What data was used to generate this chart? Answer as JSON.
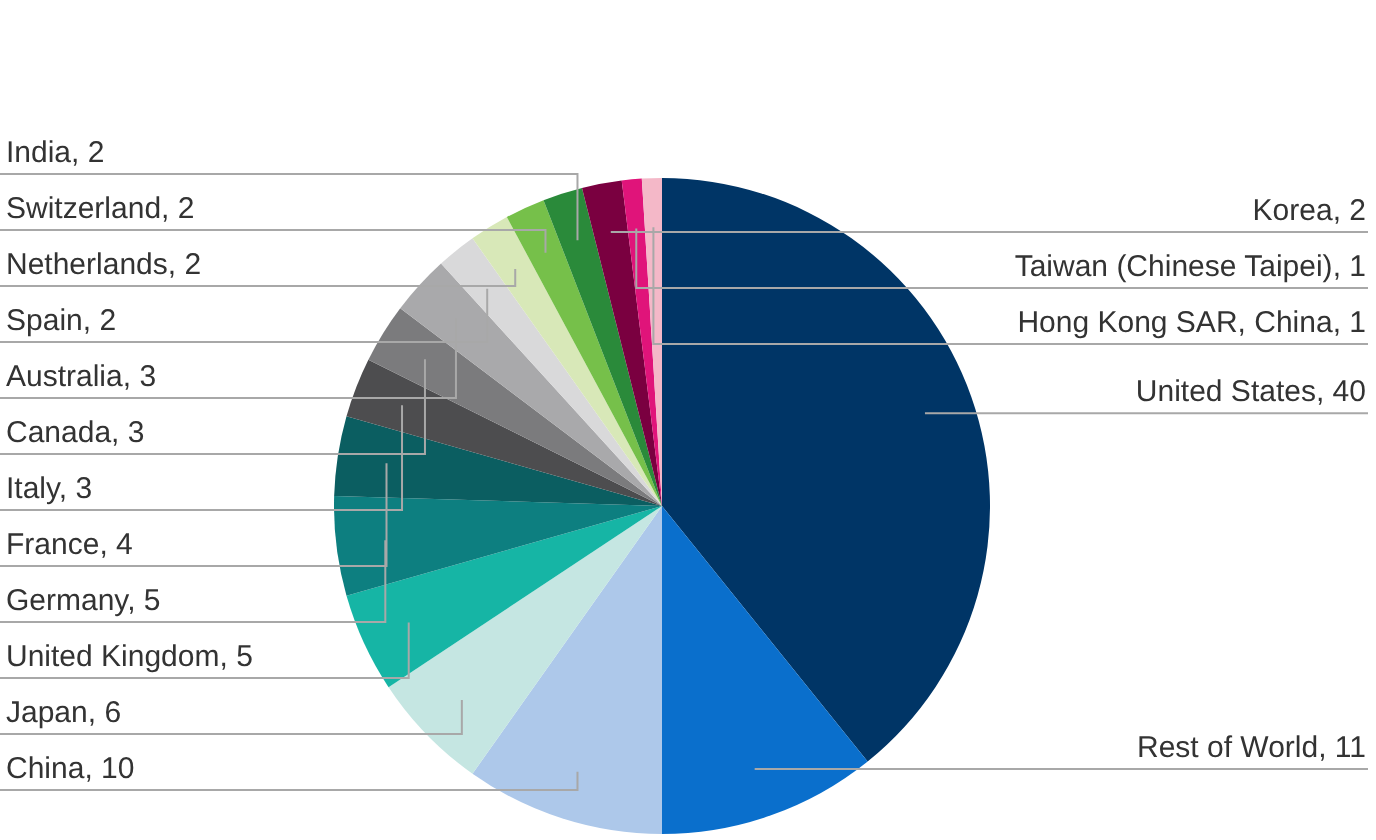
{
  "chart_data": {
    "type": "pie",
    "categories": [
      "United States",
      "Rest of World",
      "China",
      "Japan",
      "United Kingdom",
      "Germany",
      "France",
      "Italy",
      "Canada",
      "Australia",
      "Spain",
      "Netherlands",
      "Switzerland",
      "India",
      "Korea",
      "Taiwan (Chinese Taipei)",
      "Hong Kong SAR, China"
    ],
    "values": [
      40,
      11,
      10,
      6,
      5,
      5,
      4,
      3,
      3,
      3,
      2,
      2,
      2,
      2,
      2,
      1,
      1
    ],
    "colors": [
      "#003566",
      "#0a6fcc",
      "#adc8ea",
      "#c5e6e2",
      "#16b5a5",
      "#0d7f80",
      "#0b5e61",
      "#4d4d4f",
      "#7b7b7d",
      "#a9a9ab",
      "#d9d9da",
      "#d8e8b8",
      "#76c04a",
      "#2a8a3a",
      "#7a0040",
      "#e0147a",
      "#f4b8c8"
    ],
    "value_labels": [
      ", 40",
      ", 11",
      ", 10",
      ", 6",
      ", 5",
      ", 5",
      ", 4",
      ", 3",
      ", 3",
      ", 3",
      ", 2",
      ", 2",
      ", 2",
      ", 2",
      ", 2",
      ", 1",
      ", 1"
    ]
  }
}
